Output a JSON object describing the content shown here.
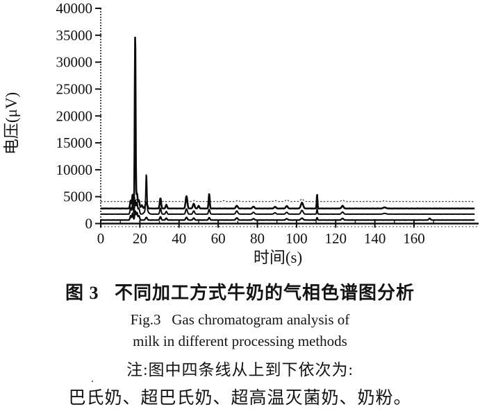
{
  "figure": {
    "caption_zh": "图 3   不同加工方式牛奶的气相色谱图分析",
    "caption_en_line1": "Fig.3   Gas chromatogram analysis of",
    "caption_en_line2": "milk in different processing methods",
    "note_line1": "注:图中四条线从上到下依次为:",
    "note_line2": "巴氏奶、超巴氏奶、超高温灭菌奶、奶粉。",
    "artifact_dot": "·"
  },
  "chart_data": {
    "type": "line",
    "title": "",
    "xlabel": "时间(s)",
    "ylabel": "电压(μV)",
    "xlim": [
      0,
      191
    ],
    "ylim": [
      0,
      40000
    ],
    "grid": false,
    "legend_position": "none (series identified in note text below figure, top to bottom)",
    "x_tick_values": [
      0,
      20,
      40,
      60,
      80,
      100,
      120,
      140,
      160
    ],
    "x_tick_labels": [
      "0",
      "20",
      "40",
      "60",
      "80",
      "100",
      "120",
      "140",
      "160"
    ],
    "x_minor_tick_values": [
      10,
      30,
      50,
      70,
      90,
      110,
      130,
      150,
      170
    ],
    "y_tick_values": [
      0,
      5000,
      10000,
      15000,
      20000,
      25000,
      30000,
      35000,
      40000
    ],
    "y_tick_labels": [
      "0",
      "5000",
      "10000",
      "15000",
      "20000",
      "25000",
      "30000",
      "35000",
      "40000"
    ],
    "peaks_format": "[retention_time_s, peak_height_uV_above_baseline, peak_half_width_s]",
    "series": [
      {
        "key": "pasteurized-milk",
        "name": "巴氏奶",
        "line_style": "dashed",
        "baseline_uV": 4100,
        "peaks": [
          [
            16.5,
            500,
            0.5
          ],
          [
            17.6,
            700,
            0.4
          ],
          [
            18.6,
            400,
            0.5
          ],
          [
            23.3,
            250,
            0.5
          ],
          [
            30.5,
            350,
            0.6
          ],
          [
            43.8,
            420,
            0.7
          ],
          [
            48.0,
            250,
            0.6
          ],
          [
            55.4,
            500,
            0.5
          ],
          [
            63.0,
            200,
            0.6
          ],
          [
            70.0,
            200,
            0.8
          ],
          [
            89.0,
            200,
            0.8
          ],
          [
            95.0,
            350,
            0.8
          ],
          [
            102.8,
            500,
            0.9
          ],
          [
            110.5,
            350,
            0.4
          ],
          [
            123.5,
            300,
            0.8
          ],
          [
            145.0,
            150,
            1.0
          ]
        ]
      },
      {
        "key": "ultra-pasteurized-milk",
        "name": "超巴氏奶",
        "line_style": "solid",
        "baseline_uV": 2800,
        "peaks": [
          [
            15.3,
            1500,
            0.45
          ],
          [
            16.3,
            2600,
            0.4
          ],
          [
            17.6,
            32500,
            0.33
          ],
          [
            18.5,
            2800,
            0.45
          ],
          [
            19.5,
            1500,
            0.5
          ],
          [
            21.0,
            600,
            0.6
          ],
          [
            23.3,
            1100,
            0.7
          ],
          [
            30.5,
            1900,
            0.5
          ],
          [
            33.5,
            700,
            0.5
          ],
          [
            43.8,
            2300,
            0.6
          ],
          [
            47.5,
            900,
            0.6
          ],
          [
            50.0,
            500,
            0.5
          ],
          [
            55.4,
            2700,
            0.4
          ],
          [
            69.5,
            500,
            0.7
          ],
          [
            78.0,
            350,
            0.7
          ],
          [
            89.0,
            300,
            0.7
          ],
          [
            95.0,
            450,
            0.7
          ],
          [
            102.8,
            1100,
            0.8
          ],
          [
            110.5,
            2600,
            0.28
          ],
          [
            123.5,
            500,
            0.7
          ],
          [
            145.0,
            200,
            1.0
          ]
        ]
      },
      {
        "key": "uht-milk",
        "name": "超高温灭菌奶",
        "line_style": "solid",
        "baseline_uV": 1750,
        "peaks": [
          [
            15.3,
            1200,
            0.45
          ],
          [
            16.3,
            1900,
            0.4
          ],
          [
            17.6,
            2600,
            0.4
          ],
          [
            18.5,
            2200,
            0.45
          ],
          [
            19.5,
            1100,
            0.5
          ],
          [
            23.3,
            6600,
            0.38
          ],
          [
            23.3,
            800,
            1.2
          ],
          [
            30.5,
            1100,
            0.5
          ],
          [
            33.5,
            500,
            0.5
          ],
          [
            43.8,
            1000,
            0.6
          ],
          [
            47.5,
            600,
            0.6
          ],
          [
            55.4,
            900,
            0.5
          ],
          [
            69.5,
            600,
            0.7
          ],
          [
            78.0,
            350,
            0.7
          ],
          [
            89.0,
            250,
            0.7
          ],
          [
            95.0,
            350,
            0.7
          ],
          [
            102.8,
            700,
            0.8
          ],
          [
            110.5,
            900,
            0.3
          ],
          [
            123.5,
            400,
            0.7
          ],
          [
            145.0,
            150,
            1.0
          ]
        ]
      },
      {
        "key": "milk-powder",
        "name": "奶粉",
        "line_style": "solid",
        "baseline_uV": 650,
        "peaks": [
          [
            15.3,
            800,
            0.45
          ],
          [
            16.3,
            1300,
            0.4
          ],
          [
            17.6,
            1700,
            0.4
          ],
          [
            18.5,
            1400,
            0.45
          ],
          [
            19.5,
            800,
            0.5
          ],
          [
            23.3,
            500,
            0.6
          ],
          [
            30.5,
            600,
            0.5
          ],
          [
            33.5,
            350,
            0.5
          ],
          [
            43.8,
            500,
            0.6
          ],
          [
            47.5,
            350,
            0.6
          ],
          [
            55.4,
            450,
            0.5
          ],
          [
            69.5,
            400,
            0.7
          ],
          [
            78.0,
            250,
            0.7
          ],
          [
            95.0,
            250,
            0.7
          ],
          [
            102.8,
            350,
            0.8
          ],
          [
            110.5,
            450,
            0.3
          ],
          [
            123.5,
            300,
            0.7
          ],
          [
            168.0,
            300,
            0.6
          ]
        ]
      }
    ]
  }
}
